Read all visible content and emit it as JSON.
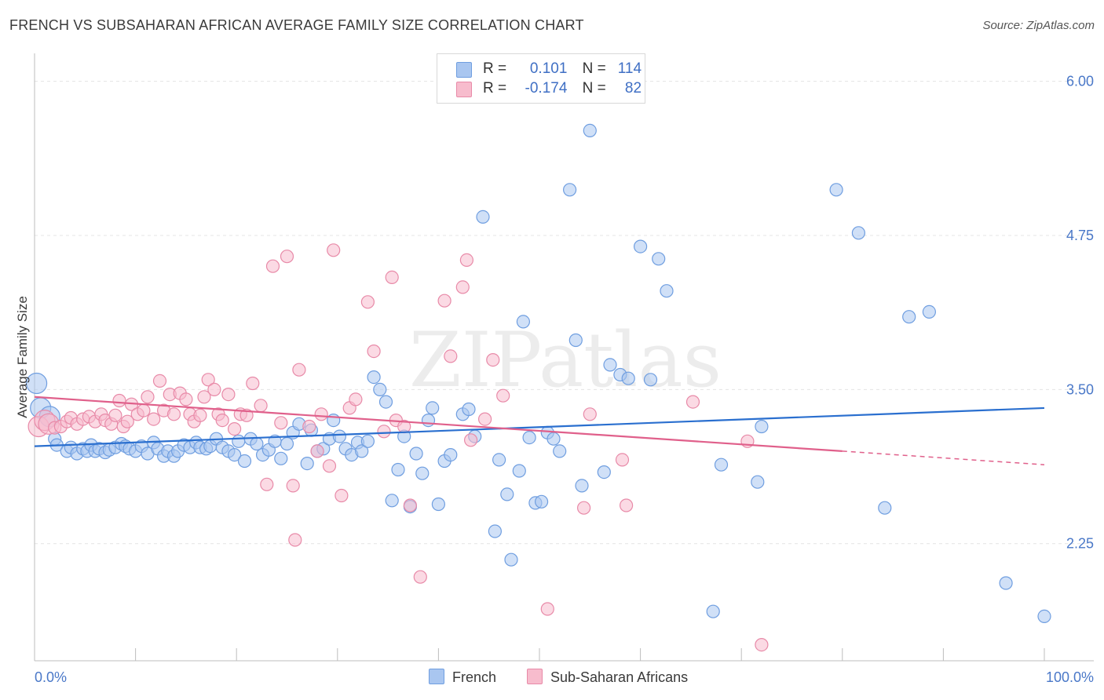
{
  "header": {
    "title": "FRENCH VS SUBSAHARAN AFRICAN AVERAGE FAMILY SIZE CORRELATION CHART",
    "source": "Source: ZipAtlas.com"
  },
  "watermark": "ZIPatlas",
  "legend": {
    "rows": [
      {
        "r_label": "R =",
        "r_value": "0.101",
        "n_label": "N =",
        "n_value": "114",
        "color": "#a9c6f0",
        "border": "#6f9ee0"
      },
      {
        "r_label": "R =",
        "r_value": "-0.174",
        "n_label": "N =",
        "n_value": "82",
        "color": "#f7bccd",
        "border": "#e88aa8"
      }
    ]
  },
  "bottom_legend": {
    "items": [
      {
        "label": "French",
        "color": "#a9c6f0",
        "border": "#6f9ee0"
      },
      {
        "label": "Sub-Saharan Africans",
        "color": "#f7bccd",
        "border": "#e88aa8"
      }
    ]
  },
  "chart_data": {
    "type": "scatter",
    "title": "FRENCH VS SUBSAHARAN AFRICAN AVERAGE FAMILY SIZE CORRELATION CHART",
    "xlabel": "",
    "ylabel": "Average Family Size",
    "xlim": [
      0,
      100
    ],
    "ylim": [
      1.3,
      6.15
    ],
    "x_tick_labels": [
      "0.0%",
      "100.0%"
    ],
    "y_ticks": [
      2.25,
      3.5,
      4.75,
      6.0
    ],
    "y_tick_labels": [
      "2.25",
      "3.50",
      "4.75",
      "6.00"
    ],
    "grid": true,
    "series": [
      {
        "name": "French",
        "color": "#6f9ee0",
        "fill": "#a9c6f0",
        "line_color": "#2a6fcf",
        "trend": {
          "x0": 0,
          "y0": 3.04,
          "x1": 100,
          "y1": 3.35
        },
        "points": [
          [
            0.2,
            3.55
          ],
          [
            0.6,
            3.35
          ],
          [
            1.5,
            3.28
          ],
          [
            2.0,
            3.1
          ],
          [
            2.2,
            3.05
          ],
          [
            3.2,
            3.0
          ],
          [
            3.6,
            3.03
          ],
          [
            4.2,
            2.98
          ],
          [
            4.8,
            3.02
          ],
          [
            5.2,
            3.0
          ],
          [
            5.6,
            3.05
          ],
          [
            6.0,
            3.0
          ],
          [
            6.4,
            3.02
          ],
          [
            7.0,
            2.99
          ],
          [
            7.4,
            3.01
          ],
          [
            8.0,
            3.03
          ],
          [
            8.6,
            3.06
          ],
          [
            9.0,
            3.04
          ],
          [
            9.4,
            3.02
          ],
          [
            10.0,
            3.0
          ],
          [
            10.6,
            3.04
          ],
          [
            11.2,
            2.98
          ],
          [
            11.8,
            3.07
          ],
          [
            12.2,
            3.02
          ],
          [
            12.8,
            2.96
          ],
          [
            13.2,
            3.0
          ],
          [
            13.8,
            2.96
          ],
          [
            14.2,
            3.0
          ],
          [
            14.8,
            3.05
          ],
          [
            15.4,
            3.03
          ],
          [
            16.0,
            3.07
          ],
          [
            16.4,
            3.03
          ],
          [
            17.0,
            3.02
          ],
          [
            17.4,
            3.04
          ],
          [
            18.0,
            3.1
          ],
          [
            18.6,
            3.03
          ],
          [
            19.2,
            3.0
          ],
          [
            19.8,
            2.97
          ],
          [
            20.2,
            3.08
          ],
          [
            20.8,
            2.92
          ],
          [
            21.4,
            3.1
          ],
          [
            22.0,
            3.06
          ],
          [
            22.6,
            2.97
          ],
          [
            23.2,
            3.01
          ],
          [
            23.8,
            3.08
          ],
          [
            24.4,
            2.94
          ],
          [
            25.0,
            3.06
          ],
          [
            25.6,
            3.15
          ],
          [
            26.2,
            3.22
          ],
          [
            27.0,
            2.9
          ],
          [
            27.4,
            3.17
          ],
          [
            28.0,
            3.0
          ],
          [
            28.6,
            3.02
          ],
          [
            29.2,
            3.1
          ],
          [
            29.6,
            3.25
          ],
          [
            30.2,
            3.12
          ],
          [
            30.8,
            3.02
          ],
          [
            31.4,
            2.97
          ],
          [
            32.0,
            3.07
          ],
          [
            32.4,
            3.0
          ],
          [
            33.0,
            3.08
          ],
          [
            33.6,
            3.6
          ],
          [
            34.2,
            3.5
          ],
          [
            34.8,
            3.4
          ],
          [
            35.4,
            2.6
          ],
          [
            36.0,
            2.85
          ],
          [
            36.6,
            3.12
          ],
          [
            37.2,
            2.55
          ],
          [
            37.8,
            2.98
          ],
          [
            38.4,
            2.82
          ],
          [
            39.0,
            3.25
          ],
          [
            39.4,
            3.35
          ],
          [
            40.0,
            2.57
          ],
          [
            40.6,
            2.92
          ],
          [
            41.2,
            2.97
          ],
          [
            42.4,
            3.3
          ],
          [
            43.0,
            3.34
          ],
          [
            43.6,
            3.12
          ],
          [
            44.4,
            4.9
          ],
          [
            45.6,
            2.35
          ],
          [
            46.0,
            2.93
          ],
          [
            46.8,
            2.65
          ],
          [
            47.2,
            2.12
          ],
          [
            48.0,
            2.84
          ],
          [
            48.4,
            4.05
          ],
          [
            49.0,
            3.11
          ],
          [
            49.6,
            2.58
          ],
          [
            50.2,
            2.59
          ],
          [
            50.8,
            3.15
          ],
          [
            51.4,
            3.1
          ],
          [
            52.0,
            3.0
          ],
          [
            53.0,
            5.12
          ],
          [
            53.6,
            3.9
          ],
          [
            54.2,
            2.72
          ],
          [
            55.0,
            5.6
          ],
          [
            56.4,
            2.83
          ],
          [
            57.0,
            3.7
          ],
          [
            58.0,
            3.62
          ],
          [
            58.8,
            3.59
          ],
          [
            60.0,
            4.66
          ],
          [
            61.0,
            3.58
          ],
          [
            61.8,
            4.56
          ],
          [
            62.6,
            4.3
          ],
          [
            67.2,
            1.7
          ],
          [
            68.0,
            2.89
          ],
          [
            71.6,
            2.75
          ],
          [
            72.0,
            3.2
          ],
          [
            79.4,
            5.12
          ],
          [
            81.6,
            4.77
          ],
          [
            84.2,
            2.54
          ],
          [
            86.6,
            4.09
          ],
          [
            88.6,
            4.13
          ],
          [
            96.2,
            1.93
          ],
          [
            100.0,
            1.66
          ]
        ]
      },
      {
        "name": "Sub-Saharan Africans",
        "color": "#e88aa8",
        "fill": "#f7bccd",
        "line_color": "#e0608b",
        "trend": {
          "x0": 0,
          "y0": 3.44,
          "x1": 80,
          "y1": 3.0,
          "dash_to_x": 100,
          "dash_to_y": 2.89
        },
        "points": [
          [
            0.4,
            3.2
          ],
          [
            1.0,
            3.25
          ],
          [
            1.4,
            3.22
          ],
          [
            2.0,
            3.19
          ],
          [
            2.6,
            3.2
          ],
          [
            3.2,
            3.24
          ],
          [
            3.6,
            3.27
          ],
          [
            4.2,
            3.22
          ],
          [
            4.8,
            3.26
          ],
          [
            5.4,
            3.28
          ],
          [
            6.0,
            3.24
          ],
          [
            6.6,
            3.3
          ],
          [
            7.0,
            3.25
          ],
          [
            7.6,
            3.22
          ],
          [
            8.0,
            3.29
          ],
          [
            8.4,
            3.41
          ],
          [
            8.8,
            3.2
          ],
          [
            9.2,
            3.24
          ],
          [
            9.6,
            3.38
          ],
          [
            10.2,
            3.3
          ],
          [
            10.8,
            3.33
          ],
          [
            11.2,
            3.44
          ],
          [
            11.8,
            3.26
          ],
          [
            12.4,
            3.57
          ],
          [
            12.8,
            3.33
          ],
          [
            13.4,
            3.46
          ],
          [
            13.8,
            3.3
          ],
          [
            14.4,
            3.47
          ],
          [
            15.0,
            3.42
          ],
          [
            15.4,
            3.3
          ],
          [
            15.8,
            3.24
          ],
          [
            16.4,
            3.29
          ],
          [
            16.8,
            3.44
          ],
          [
            17.2,
            3.58
          ],
          [
            17.8,
            3.5
          ],
          [
            18.2,
            3.3
          ],
          [
            18.6,
            3.25
          ],
          [
            19.2,
            3.46
          ],
          [
            19.8,
            3.18
          ],
          [
            20.4,
            3.3
          ],
          [
            21.0,
            3.29
          ],
          [
            21.6,
            3.55
          ],
          [
            22.4,
            3.37
          ],
          [
            23.0,
            2.73
          ],
          [
            23.6,
            4.5
          ],
          [
            24.4,
            3.23
          ],
          [
            25.0,
            4.58
          ],
          [
            25.6,
            2.72
          ],
          [
            25.8,
            2.28
          ],
          [
            26.2,
            3.66
          ],
          [
            27.2,
            3.2
          ],
          [
            28.0,
            3.0
          ],
          [
            28.4,
            3.3
          ],
          [
            29.2,
            2.88
          ],
          [
            29.6,
            4.63
          ],
          [
            30.4,
            2.64
          ],
          [
            31.2,
            3.35
          ],
          [
            31.8,
            3.42
          ],
          [
            33.0,
            4.21
          ],
          [
            33.6,
            3.81
          ],
          [
            34.6,
            3.16
          ],
          [
            35.4,
            4.41
          ],
          [
            35.8,
            3.25
          ],
          [
            36.6,
            3.2
          ],
          [
            37.2,
            2.56
          ],
          [
            38.2,
            1.98
          ],
          [
            40.6,
            4.22
          ],
          [
            41.2,
            3.77
          ],
          [
            42.4,
            4.33
          ],
          [
            42.8,
            4.55
          ],
          [
            43.2,
            3.09
          ],
          [
            44.6,
            3.26
          ],
          [
            45.4,
            3.74
          ],
          [
            46.4,
            3.45
          ],
          [
            50.8,
            1.72
          ],
          [
            54.4,
            2.54
          ],
          [
            55.0,
            3.3
          ],
          [
            58.2,
            2.93
          ],
          [
            58.6,
            2.56
          ],
          [
            65.2,
            3.4
          ],
          [
            70.6,
            3.08
          ],
          [
            72.0,
            1.43
          ]
        ]
      }
    ]
  }
}
